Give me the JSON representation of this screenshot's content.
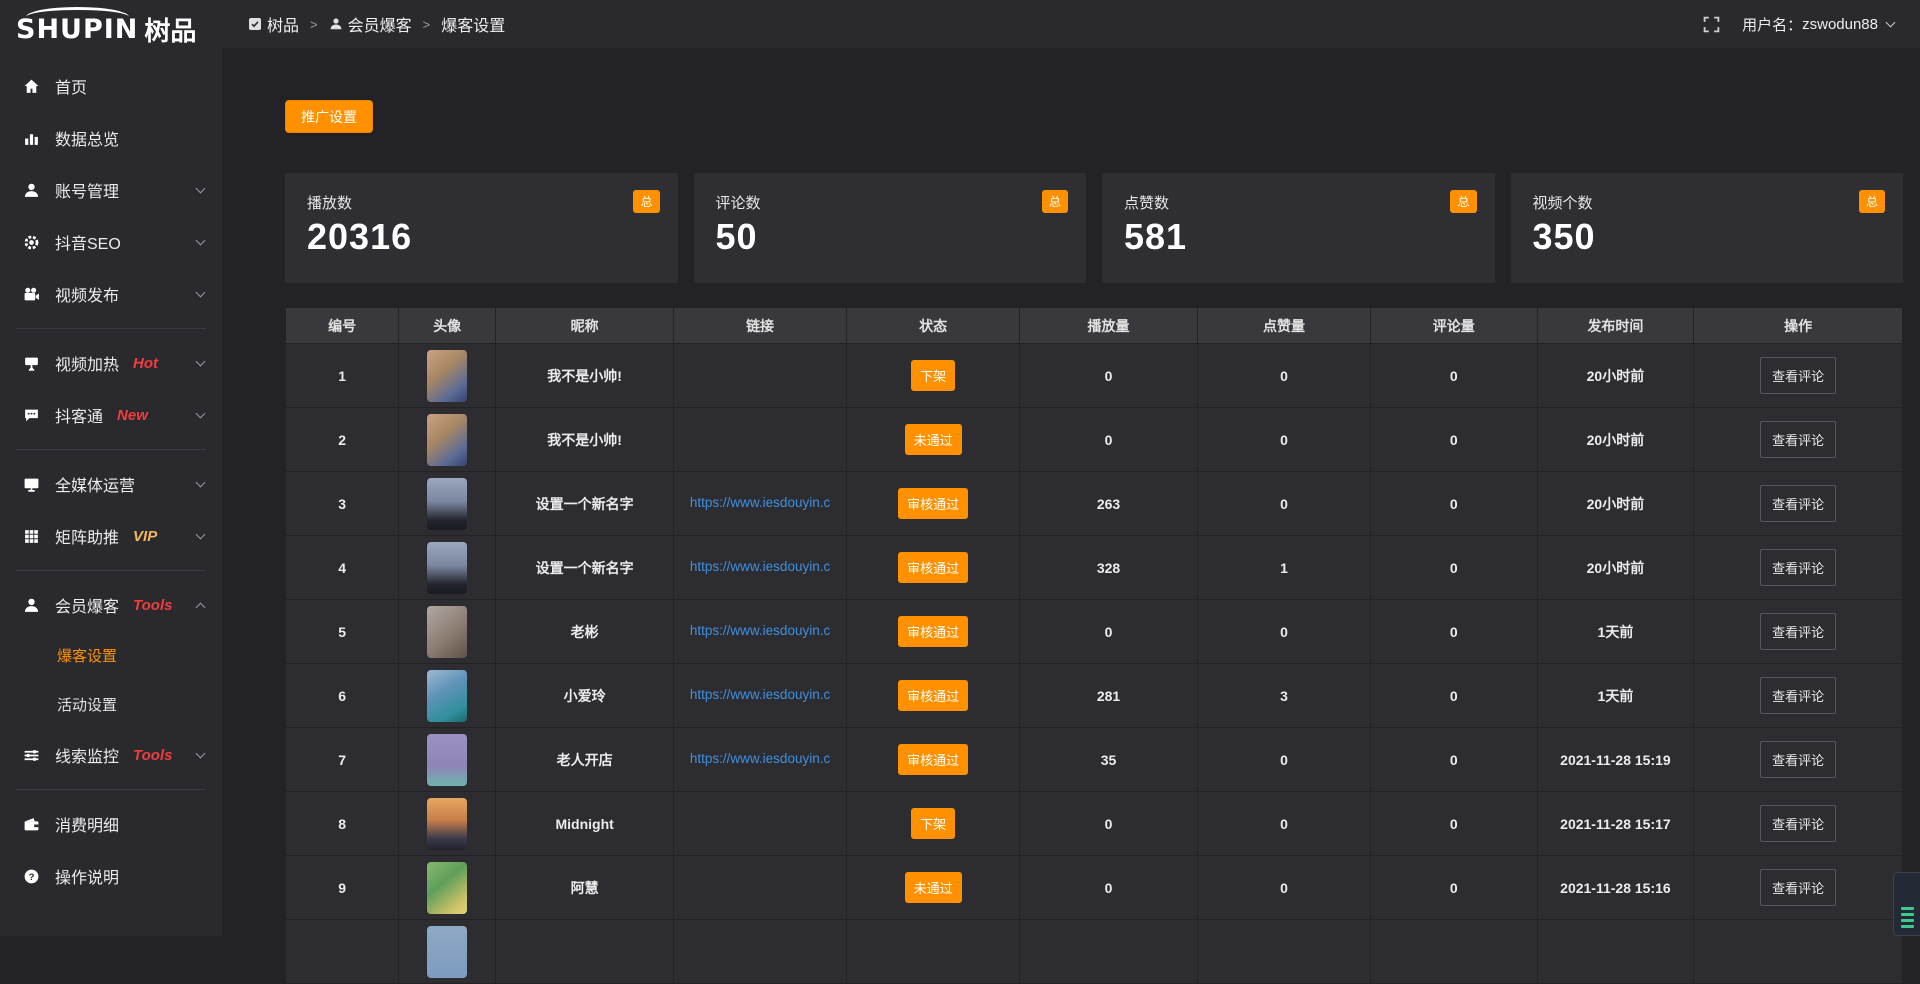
{
  "brand": {
    "logo_en": "SHUPIN",
    "logo_cn": "树品"
  },
  "topbar": {
    "breadcrumb": [
      {
        "label": "树品"
      },
      {
        "label": "会员爆客"
      },
      {
        "label": "爆客设置"
      }
    ],
    "separator": ">",
    "username_label": "用户名：",
    "username": "zswodun88"
  },
  "sidebar": {
    "items": [
      {
        "label": "首页"
      },
      {
        "label": "数据总览"
      },
      {
        "label": "账号管理"
      },
      {
        "label": "抖音SEO"
      },
      {
        "label": "视频发布"
      },
      {
        "label": "视频加热",
        "tag": "Hot"
      },
      {
        "label": "抖客通",
        "tag": "New"
      },
      {
        "label": "全媒体运营"
      },
      {
        "label": "矩阵助推",
        "tag": "VIP"
      },
      {
        "label": "会员爆客",
        "tag": "Tools"
      },
      {
        "label": "线索监控",
        "tag": "Tools"
      },
      {
        "label": "消费明细"
      },
      {
        "label": "操作说明"
      }
    ],
    "submenu": [
      {
        "label": "爆客设置",
        "active": true
      },
      {
        "label": "活动设置",
        "active": false
      }
    ]
  },
  "main": {
    "promo_button": "推广设置",
    "stats": [
      {
        "label": "播放数",
        "value": "20316",
        "badge": "总"
      },
      {
        "label": "评论数",
        "value": "50",
        "badge": "总"
      },
      {
        "label": "点赞数",
        "value": "581",
        "badge": "总"
      },
      {
        "label": "视频个数",
        "value": "350",
        "badge": "总"
      }
    ],
    "table": {
      "headers": [
        "编号",
        "头像",
        "昵称",
        "链接",
        "状态",
        "播放量",
        "点赞量",
        "评论量",
        "发布时间",
        "操作"
      ],
      "action_label": "查看评论",
      "rows": [
        {
          "id": "1",
          "avatar": "boy",
          "nickname": "我不是小帅!",
          "link": "",
          "status": "下架",
          "plays": "0",
          "likes": "0",
          "comments": "0",
          "time": "20小时前"
        },
        {
          "id": "2",
          "avatar": "boy",
          "nickname": "我不是小帅!",
          "link": "",
          "status": "未通过",
          "plays": "0",
          "likes": "0",
          "comments": "0",
          "time": "20小时前"
        },
        {
          "id": "3",
          "avatar": "sky",
          "nickname": "设置一个新名字",
          "link": "https://www.iesdouyin.c",
          "status": "审核通过",
          "plays": "263",
          "likes": "0",
          "comments": "0",
          "time": "20小时前"
        },
        {
          "id": "4",
          "avatar": "sky",
          "nickname": "设置一个新名字",
          "link": "https://www.iesdouyin.c",
          "status": "审核通过",
          "plays": "328",
          "likes": "1",
          "comments": "0",
          "time": "20小时前"
        },
        {
          "id": "5",
          "avatar": "man",
          "nickname": "老彬",
          "link": "https://www.iesdouyin.c",
          "status": "审核通过",
          "plays": "0",
          "likes": "0",
          "comments": "0",
          "time": "1天前"
        },
        {
          "id": "6",
          "avatar": "pool",
          "nickname": "小爱玲",
          "link": "https://www.iesdouyin.c",
          "status": "审核通过",
          "plays": "281",
          "likes": "3",
          "comments": "0",
          "time": "1天前"
        },
        {
          "id": "7",
          "avatar": "cartoon",
          "nickname": "老人开店",
          "link": "https://www.iesdouyin.c",
          "status": "审核通过",
          "plays": "35",
          "likes": "0",
          "comments": "0",
          "time": "2021-11-28 15:19"
        },
        {
          "id": "8",
          "avatar": "sunset",
          "nickname": "Midnight",
          "link": "",
          "status": "下架",
          "plays": "0",
          "likes": "0",
          "comments": "0",
          "time": "2021-11-28 15:17"
        },
        {
          "id": "9",
          "avatar": "green",
          "nickname": "阿慧",
          "link": "",
          "status": "未通过",
          "plays": "0",
          "likes": "0",
          "comments": "0",
          "time": "2021-11-28 15:16"
        },
        {
          "id": "",
          "avatar": "blue",
          "nickname": "",
          "link": "",
          "status": "",
          "plays": "",
          "likes": "",
          "comments": "",
          "time": "",
          "partial": true
        }
      ]
    }
  },
  "colors": {
    "accent_orange": "#ff9100",
    "link_blue": "#3f8fdd",
    "tag_red": "#f03e3e",
    "tag_gold": "#f0b95a",
    "service_green": "#3ec98e",
    "sidebar_bg": "#2a2a2e",
    "content_bg": "#232327",
    "panel_bg": "#2e2e33"
  }
}
